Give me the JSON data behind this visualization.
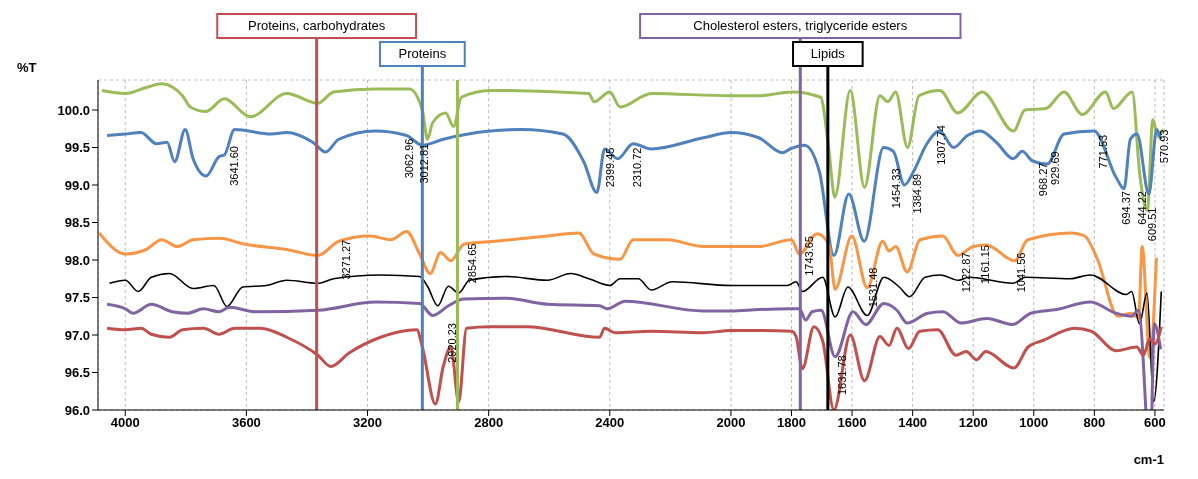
{
  "chart_data": {
    "type": "line",
    "ylabel": "%T",
    "xlabel": "cm-1",
    "xlim": [
      4090,
      570
    ],
    "xticks": [
      4000,
      3600,
      3200,
      2800,
      2400,
      2000,
      1800,
      1600,
      1400,
      1200,
      1000,
      800,
      600
    ],
    "ylim": [
      96,
      100.4
    ],
    "yticks": [
      {
        "value": 96,
        "label": "96.0"
      },
      {
        "value": 96.5,
        "label": "96.5"
      },
      {
        "value": 97,
        "label": "97.0"
      },
      {
        "value": 97.5,
        "label": "97.5"
      },
      {
        "value": 98,
        "label": "98.0"
      },
      {
        "value": 98.5,
        "label": "98.5"
      },
      {
        "value": 99,
        "label": "99.0"
      },
      {
        "value": 99.5,
        "label": "99.5"
      },
      {
        "value": 100,
        "label": "100.0"
      }
    ],
    "grid": true,
    "marker": "none",
    "line_style": "solid",
    "series": [
      {
        "color": "#9bbb59",
        "x": [
          4077,
          4000,
          3931,
          3880,
          3811,
          3785,
          3734,
          3673,
          3587,
          3467,
          3364,
          3312,
          3174,
          3062,
          3019,
          3002,
          2985,
          2942,
          2916,
          2890,
          2795,
          2469,
          2452,
          2400,
          2366,
          2263,
          2000,
          1908,
          1798,
          1704,
          1678,
          1657,
          1606,
          1559,
          1508,
          1482,
          1456,
          1417,
          1379,
          1310,
          1251,
          1170,
          1067,
          1029,
          960,
          900,
          840,
          763,
          737,
          675,
          650,
          625,
          607,
          590,
          573
        ],
        "values": [
          100.26,
          100.22,
          100.3,
          100.35,
          100.19,
          100.04,
          99.98,
          100.15,
          99.91,
          100.22,
          100.09,
          100.24,
          100.28,
          100.28,
          100.0,
          99.61,
          99.83,
          99.96,
          99.78,
          100.17,
          100.26,
          100.22,
          100.11,
          100.24,
          100.04,
          100.22,
          100.19,
          100.19,
          100.24,
          100.17,
          99.52,
          98.84,
          100.26,
          98.97,
          100.19,
          100.11,
          100.24,
          99.5,
          100.19,
          100.26,
          99.96,
          100.24,
          99.72,
          100.0,
          100.02,
          100.24,
          99.94,
          100.24,
          100.02,
          100.24,
          99.14,
          98.66,
          99.87,
          99.65,
          99.74
        ]
      },
      {
        "color": "#4f81bd",
        "x": [
          4060,
          4000,
          3948,
          3897,
          3862,
          3837,
          3802,
          3776,
          3733,
          3690,
          3673,
          3639,
          3518,
          3467,
          3381,
          3338,
          3295,
          3174,
          3071,
          3019,
          2950,
          2795,
          2692,
          2555,
          2486,
          2443,
          2417,
          2374,
          2323,
          2263,
          2091,
          2000,
          1908,
          1830,
          1805,
          1757,
          1708,
          1660,
          1611,
          1560,
          1496,
          1464,
          1427,
          1397,
          1353,
          1311,
          1265,
          1219,
          1176,
          1124,
          1068,
          1038,
          1004,
          956,
          900,
          801,
          728,
          702,
          681,
          659,
          620,
          594,
          581
        ],
        "values": [
          99.66,
          99.68,
          99.7,
          99.55,
          99.57,
          99.31,
          99.74,
          99.35,
          99.12,
          99.38,
          99.4,
          99.74,
          99.68,
          99.7,
          99.57,
          99.44,
          99.61,
          99.72,
          99.66,
          99.53,
          99.61,
          99.72,
          99.74,
          99.68,
          99.31,
          98.9,
          99.48,
          99.35,
          99.55,
          99.48,
          99.63,
          99.7,
          99.63,
          99.43,
          99.48,
          99.53,
          99.18,
          98.06,
          98.88,
          98.25,
          99.5,
          99.45,
          99.0,
          99.18,
          99.55,
          99.72,
          99.5,
          99.66,
          99.72,
          99.57,
          99.35,
          99.45,
          99.32,
          99.28,
          99.68,
          99.72,
          99.1,
          98.95,
          99.61,
          99.68,
          98.88,
          99.74,
          99.61
        ]
      },
      {
        "color": "#f79646",
        "x": [
          4086,
          4000,
          3931,
          3880,
          3828,
          3776,
          3690,
          3604,
          3467,
          3364,
          3295,
          3192,
          3123,
          3071,
          3028,
          2993,
          2959,
          2925,
          2882,
          2778,
          2606,
          2503,
          2452,
          2366,
          2323,
          2211,
          2091,
          2000,
          1908,
          1800,
          1774,
          1715,
          1676,
          1656,
          1601,
          1550,
          1499,
          1478,
          1456,
          1418,
          1376,
          1300,
          1251,
          1200,
          1157,
          1063,
          1020,
          875,
          832,
          790,
          722,
          680,
          654,
          642,
          617,
          595
        ],
        "values": [
          98.36,
          98.08,
          98.14,
          98.27,
          98.18,
          98.27,
          98.29,
          98.21,
          98.14,
          98.06,
          98.25,
          98.32,
          98.27,
          98.38,
          98.08,
          97.82,
          98.1,
          97.99,
          98.21,
          98.25,
          98.32,
          98.36,
          98.08,
          98.01,
          98.27,
          98.27,
          98.18,
          98.18,
          98.18,
          98.27,
          98.08,
          98.35,
          98.2,
          97.61,
          98.32,
          97.63,
          98.25,
          98.12,
          98.18,
          97.84,
          98.27,
          98.32,
          98.06,
          98.18,
          98.2,
          97.99,
          98.27,
          98.36,
          98.32,
          98.01,
          97.25,
          97.29,
          97.23,
          98.18,
          96.7,
          98.03
        ]
      },
      {
        "color": "#000000",
        "x": [
          4052,
          4000,
          3957,
          3914,
          3854,
          3776,
          3707,
          3664,
          3612,
          3535,
          3467,
          3364,
          3312,
          3157,
          3028,
          3002,
          2968,
          2933,
          2899,
          2864,
          2744,
          2606,
          2529,
          2469,
          2400,
          2366,
          2306,
          2263,
          2194,
          2000,
          1908,
          1814,
          1785,
          1764,
          1697,
          1656,
          1614,
          1550,
          1495,
          1444,
          1410,
          1359,
          1308,
          1249,
          1214,
          1069,
          1027,
          881,
          813,
          694,
          677,
          651,
          626,
          604,
          579
        ],
        "values": [
          97.69,
          97.73,
          97.58,
          97.77,
          97.82,
          97.62,
          97.66,
          97.38,
          97.64,
          97.66,
          97.73,
          97.69,
          97.75,
          97.8,
          97.78,
          97.65,
          97.39,
          97.65,
          97.56,
          97.73,
          97.78,
          97.73,
          97.82,
          97.75,
          97.66,
          97.75,
          97.75,
          97.6,
          97.71,
          97.66,
          97.66,
          97.66,
          97.71,
          97.58,
          97.77,
          97.24,
          97.64,
          97.26,
          97.77,
          97.64,
          97.51,
          97.77,
          97.8,
          97.73,
          97.77,
          97.69,
          97.77,
          97.75,
          97.8,
          97.54,
          97.58,
          97.15,
          97.56,
          96.11,
          97.58
        ]
      },
      {
        "color": "#8064a2",
        "x": [
          4060,
          4000,
          3974,
          3914,
          3845,
          3794,
          3742,
          3690,
          3656,
          3570,
          3364,
          3174,
          3028,
          2985,
          2933,
          2882,
          2744,
          2606,
          2434,
          2409,
          2349,
          2091,
          2000,
          1908,
          1800,
          1774,
          1753,
          1732,
          1702,
          1656,
          1597,
          1555,
          1495,
          1452,
          1418,
          1350,
          1300,
          1240,
          1155,
          1069,
          1010,
          925,
          813,
          728,
          677,
          655,
          630,
          620,
          610,
          602,
          581
        ],
        "values": [
          97.41,
          97.35,
          97.29,
          97.41,
          97.31,
          97.29,
          97.35,
          97.31,
          97.37,
          97.31,
          97.33,
          97.44,
          97.42,
          97.26,
          97.39,
          97.48,
          97.49,
          97.41,
          97.39,
          97.35,
          97.45,
          97.32,
          97.32,
          97.34,
          97.35,
          97.35,
          97.2,
          97.31,
          97.33,
          96.71,
          97.31,
          97.14,
          97.42,
          97.33,
          97.16,
          97.29,
          97.31,
          97.16,
          97.22,
          97.14,
          97.29,
          97.34,
          97.44,
          97.29,
          97.25,
          97.33,
          96.0,
          null,
          96.0,
          97.15,
          96.81
        ]
      },
      {
        "color": "#c0504d",
        "x": [
          4060,
          4000,
          3948,
          3914,
          3854,
          3811,
          3742,
          3690,
          3639,
          3553,
          3467,
          3364,
          3321,
          3261,
          3157,
          3071,
          3037,
          3019,
          2976,
          2950,
          2925,
          2899,
          2873,
          2795,
          2675,
          2434,
          2417,
          2383,
          2263,
          2091,
          2000,
          1908,
          1800,
          1785,
          1764,
          1726,
          1697,
          1660,
          1606,
          1559,
          1508,
          1478,
          1452,
          1414,
          1376,
          1317,
          1257,
          1223,
          1189,
          1159,
          1066,
          1019,
          968,
          865,
          810,
          728,
          660,
          638,
          617,
          600,
          579
        ],
        "values": [
          97.09,
          97.07,
          97.09,
          97.01,
          96.97,
          97.07,
          97.09,
          97.01,
          97.09,
          97.09,
          96.97,
          96.73,
          96.58,
          96.76,
          96.97,
          97.06,
          97.07,
          96.84,
          96.08,
          96.58,
          96.84,
          96.11,
          97.09,
          97.11,
          97.11,
          96.97,
          97.09,
          97.03,
          97.05,
          97.03,
          97.06,
          97.06,
          97.05,
          96.98,
          96.55,
          97.11,
          96.92,
          96.0,
          97.0,
          96.39,
          96.98,
          96.86,
          97.09,
          96.82,
          97.05,
          97.07,
          96.73,
          96.78,
          96.67,
          96.78,
          96.56,
          96.84,
          96.93,
          97.09,
          97.05,
          96.79,
          96.84,
          96.73,
          96.95,
          96.88,
          97.11
        ]
      }
    ],
    "ref_lines": [
      {
        "axis": "x",
        "value": 3368,
        "label": "Proteins, carbohydrates",
        "color": "#c0504d"
      },
      {
        "axis": "x",
        "value": 3019,
        "label": "Proteins",
        "color": "#4f81bd"
      },
      {
        "axis": "x",
        "value": 2903,
        "color": "#9bbb59"
      },
      {
        "axis": "x",
        "value": 1771,
        "label": "Cholesterol esters, triglyceride esters",
        "color": "#8064a2"
      },
      {
        "axis": "x",
        "value": 1680,
        "label": "Lipids",
        "color": "#000000"
      }
    ],
    "annotations": [
      {
        "text": "3641.60",
        "x": 3641.6,
        "y": 99.52
      },
      {
        "text": "3062.96",
        "x": 3062.96,
        "y": 99.62
      },
      {
        "text": "3012.81",
        "x": 3012.81,
        "y": 99.55
      },
      {
        "text": "2399.45",
        "x": 2399.45,
        "y": 99.5
      },
      {
        "text": "2310.72",
        "x": 2310.72,
        "y": 99.5
      },
      {
        "text": "1454.33",
        "x": 1454.33,
        "y": 99.22
      },
      {
        "text": "1384.89",
        "x": 1384.89,
        "y": 99.15
      },
      {
        "text": "1307.74",
        "x": 1307.74,
        "y": 99.8
      },
      {
        "text": "968.27",
        "x": 968.27,
        "y": 99.3
      },
      {
        "text": "929.69",
        "x": 929.69,
        "y": 99.45
      },
      {
        "text": "771.53",
        "x": 771.53,
        "y": 99.67
      },
      {
        "text": "694.37",
        "x": 694.37,
        "y": 98.92
      },
      {
        "text": "644.22",
        "x": 644.22,
        "y": 98.92
      },
      {
        "text": "609.51",
        "x": 609.51,
        "y": 98.7
      },
      {
        "text": "570.93",
        "x": 570.93,
        "y": 99.74
      },
      {
        "text": "1222.87",
        "x": 1222.87,
        "y": 98.1
      },
      {
        "text": "1161.15",
        "x": 1161.15,
        "y": 98.2
      },
      {
        "text": "1041.56",
        "x": 1041.56,
        "y": 98.1
      },
      {
        "text": "3271.27",
        "x": 3271.27,
        "y": 98.27
      },
      {
        "text": "2854.65",
        "x": 2854.65,
        "y": 98.22
      },
      {
        "text": "2920.23",
        "x": 2920.23,
        "y": 97.16
      },
      {
        "text": "1743.65",
        "x": 1743.65,
        "y": 98.32
      },
      {
        "text": "1531.48",
        "x": 1531.48,
        "y": 97.9
      },
      {
        "text": "1631.78",
        "x": 1631.78,
        "y": 96.73
      }
    ]
  }
}
